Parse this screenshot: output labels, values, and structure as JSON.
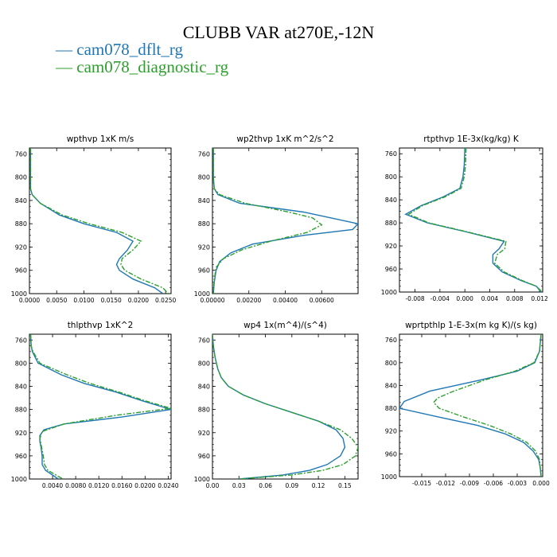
{
  "figure": {
    "title": "CLUBB VAR at270E,-12N",
    "legend": [
      "— cam078_dflt_rg",
      "— cam078_diagnostic_rg"
    ]
  },
  "colors": {
    "series_0": "#1f77b4",
    "series_1": "#2ca02c",
    "axis": "#000000"
  },
  "chart_data": [
    {
      "type": "line",
      "title": "wpthvp   1xK m/s",
      "xlim": [
        0,
        0.026
      ],
      "ylim": [
        1000,
        750
      ],
      "xticks": [
        0,
        0.005,
        0.01,
        0.015,
        0.02,
        0.025
      ],
      "xtick_labels": [
        "0.0000",
        "0.0050",
        "0.0100",
        "0.0150",
        "0.0200",
        "0.0250"
      ],
      "yticks": [
        760,
        800,
        840,
        880,
        920,
        960,
        1000
      ],
      "ytick_labels": [
        "760",
        "800",
        "840",
        "880",
        "920",
        "960",
        "1000"
      ],
      "series": [
        {
          "y": [
            750,
            760,
            780,
            800,
            820,
            830,
            845,
            865,
            880,
            895,
            910,
            925,
            940,
            950,
            960,
            975,
            990,
            1000
          ],
          "x": [
            0.0002,
            0.0002,
            0.0002,
            0.0002,
            0.0002,
            0.0005,
            0.002,
            0.0055,
            0.01,
            0.016,
            0.019,
            0.018,
            0.0165,
            0.016,
            0.0165,
            0.019,
            0.023,
            0.0245
          ]
        },
        {
          "y": [
            750,
            760,
            780,
            800,
            820,
            830,
            845,
            865,
            880,
            895,
            910,
            925,
            940,
            950,
            960,
            975,
            990,
            1000
          ],
          "x": [
            0.0002,
            0.0002,
            0.0002,
            0.0002,
            0.0002,
            0.0005,
            0.002,
            0.006,
            0.011,
            0.017,
            0.0205,
            0.019,
            0.017,
            0.0168,
            0.0175,
            0.0205,
            0.0245,
            0.0255
          ]
        }
      ]
    },
    {
      "type": "line",
      "title": "wp2thvp   1xK m^2/s^2",
      "xlim": [
        0,
        0.008
      ],
      "ylim": [
        1000,
        750
      ],
      "xticks": [
        0,
        0.002,
        0.004,
        0.006
      ],
      "xtick_labels": [
        "0.00000",
        "0.00200",
        "0.00400",
        "0.00600"
      ],
      "yticks": [
        760,
        800,
        840,
        880,
        920,
        960,
        1000
      ],
      "ytick_labels": [
        "760",
        "800",
        "840",
        "880",
        "920",
        "960",
        "1000"
      ],
      "series": [
        {
          "y": [
            750,
            780,
            800,
            820,
            830,
            845,
            860,
            880,
            890,
            900,
            915,
            930,
            945,
            960,
            980,
            1000
          ],
          "x": [
            5e-05,
            5e-05,
            5e-05,
            0.0001,
            0.0003,
            0.0015,
            0.005,
            0.008,
            0.0077,
            0.005,
            0.0022,
            0.001,
            0.0004,
            0.0002,
            0.0001,
            5e-05
          ]
        },
        {
          "y": [
            750,
            780,
            800,
            820,
            830,
            845,
            860,
            870,
            882,
            895,
            910,
            925,
            940,
            955,
            975,
            1000
          ],
          "x": [
            5e-05,
            5e-05,
            5e-05,
            0.0001,
            0.0004,
            0.0018,
            0.0042,
            0.0055,
            0.006,
            0.0052,
            0.0032,
            0.0016,
            0.0006,
            0.0002,
            0.0001,
            5e-05
          ]
        }
      ]
    },
    {
      "type": "line",
      "title": "rtpthvp   1E-3x(kg/kg) K",
      "xlim": [
        -0.0105,
        0.0125
      ],
      "ylim": [
        1000,
        750
      ],
      "xticks": [
        -0.008,
        -0.004,
        0,
        0.004,
        0.008,
        0.012
      ],
      "xtick_labels": [
        "-0.008",
        "-0.004",
        "0.000",
        "0.004",
        "0.008",
        "0.012"
      ],
      "yticks": [
        760,
        800,
        840,
        880,
        920,
        960,
        1000
      ],
      "ytick_labels": [
        "760",
        "800",
        "840",
        "880",
        "920",
        "960",
        "1000"
      ],
      "series": [
        {
          "y": [
            750,
            780,
            800,
            820,
            835,
            850,
            865,
            880,
            895,
            912,
            925,
            935,
            950,
            965,
            980,
            990,
            1000
          ],
          "x": [
            0.0,
            -0.0001,
            -0.0003,
            -0.0008,
            -0.0035,
            -0.007,
            -0.0095,
            -0.006,
            0.0,
            0.0063,
            0.0055,
            0.0045,
            0.0045,
            0.006,
            0.009,
            0.0115,
            0.0122
          ]
        },
        {
          "y": [
            750,
            780,
            800,
            820,
            835,
            850,
            865,
            880,
            895,
            912,
            925,
            935,
            950,
            965,
            980,
            990,
            1000
          ],
          "x": [
            0.0002,
            0.0001,
            -0.0001,
            -0.0006,
            -0.0032,
            -0.0068,
            -0.009,
            -0.0058,
            0.0002,
            0.0066,
            0.0064,
            0.0052,
            0.0048,
            0.0063,
            0.0092,
            0.0115,
            0.0124
          ]
        }
      ]
    },
    {
      "type": "line",
      "title": "thlpthvp   1xK^2",
      "xlim": [
        0,
        0.0245
      ],
      "ylim": [
        1000,
        750
      ],
      "xticks": [
        0.004,
        0.008,
        0.012,
        0.016,
        0.02,
        0.024
      ],
      "xtick_labels": [
        "0.0040",
        "0.0080",
        "0.0120",
        "0.0160",
        "0.0200",
        "0.0240"
      ],
      "yticks": [
        760,
        800,
        840,
        880,
        920,
        960,
        1000
      ],
      "ytick_labels": [
        "760",
        "800",
        "840",
        "880",
        "920",
        "960",
        "1000"
      ],
      "series": [
        {
          "y": [
            750,
            770,
            780,
            800,
            820,
            835,
            850,
            865,
            880,
            893,
            905,
            915,
            925,
            935,
            945,
            960,
            975,
            985,
            1000
          ],
          "x": [
            0.0002,
            0.0003,
            0.0005,
            0.0015,
            0.0055,
            0.0095,
            0.015,
            0.0195,
            0.0245,
            0.016,
            0.006,
            0.0025,
            0.0018,
            0.0018,
            0.002,
            0.0022,
            0.0022,
            0.0028,
            0.005
          ]
        },
        {
          "y": [
            750,
            770,
            780,
            800,
            820,
            835,
            850,
            865,
            878,
            890,
            905,
            918,
            930,
            945,
            960,
            975,
            985,
            1000
          ],
          "x": [
            0.0002,
            0.0003,
            0.0006,
            0.0018,
            0.0065,
            0.0105,
            0.0155,
            0.02,
            0.0245,
            0.015,
            0.006,
            0.0022,
            0.0018,
            0.0021,
            0.0024,
            0.0026,
            0.0032,
            0.0058
          ]
        }
      ]
    },
    {
      "type": "line",
      "title": "wp4   1x(m^4)/(s^4)",
      "xlim": [
        0,
        0.165
      ],
      "ylim": [
        1000,
        750
      ],
      "xticks": [
        0,
        0.03,
        0.06,
        0.09,
        0.12,
        0.15
      ],
      "xtick_labels": [
        "0.00",
        "0.03",
        "0.06",
        "0.09",
        "0.12",
        "0.15"
      ],
      "yticks": [
        760,
        800,
        840,
        880,
        920,
        960,
        1000
      ],
      "ytick_labels": [
        "760",
        "800",
        "840",
        "880",
        "920",
        "960",
        "1000"
      ],
      "series": [
        {
          "y": [
            750,
            770,
            790,
            810,
            825,
            840,
            855,
            870,
            885,
            900,
            915,
            930,
            945,
            960,
            975,
            985,
            993,
            1000
          ],
          "x": [
            0.0,
            0.001,
            0.003,
            0.006,
            0.01,
            0.018,
            0.035,
            0.06,
            0.09,
            0.12,
            0.14,
            0.148,
            0.15,
            0.145,
            0.13,
            0.11,
            0.08,
            0.03
          ]
        },
        {
          "y": [
            750,
            770,
            790,
            810,
            825,
            840,
            855,
            870,
            885,
            900,
            915,
            930,
            945,
            960,
            975,
            985,
            993,
            1000
          ],
          "x": [
            0.0,
            0.001,
            0.003,
            0.006,
            0.01,
            0.018,
            0.035,
            0.06,
            0.09,
            0.12,
            0.145,
            0.158,
            0.165,
            0.162,
            0.148,
            0.125,
            0.09,
            0.03
          ]
        }
      ]
    },
    {
      "type": "line",
      "title": "wprtpthlp   1-E-3x(m kg K)/(s kg)",
      "xlim": [
        -0.0178,
        0.0002
      ],
      "ylim": [
        1000,
        750
      ],
      "xticks": [
        -0.015,
        -0.012,
        -0.009,
        -0.006,
        -0.003,
        0
      ],
      "xtick_labels": [
        "-0.015",
        "-0.012",
        "-0.009",
        "-0.006",
        "-0.003",
        "0.000"
      ],
      "yticks": [
        760,
        800,
        840,
        880,
        920,
        960,
        1000
      ],
      "ytick_labels": [
        "760",
        "800",
        "840",
        "880",
        "920",
        "960",
        "1000"
      ],
      "series": [
        {
          "y": [
            750,
            780,
            800,
            815,
            830,
            850,
            868,
            880,
            895,
            910,
            925,
            940,
            955,
            970,
            985,
            1000
          ],
          "x": [
            0.0,
            -0.0002,
            -0.0008,
            -0.003,
            -0.0075,
            -0.014,
            -0.0172,
            -0.0178,
            -0.013,
            -0.008,
            -0.0045,
            -0.0022,
            -0.001,
            -0.0003,
            -0.0001,
            0.0
          ]
        },
        {
          "y": [
            750,
            780,
            800,
            815,
            830,
            850,
            862,
            870,
            880,
            895,
            910,
            925,
            940,
            955,
            970,
            985,
            1000
          ],
          "x": [
            0.0,
            -0.0002,
            -0.0009,
            -0.0033,
            -0.007,
            -0.011,
            -0.013,
            -0.0135,
            -0.0128,
            -0.0098,
            -0.0065,
            -0.0038,
            -0.0018,
            -0.0007,
            -0.0002,
            -0.0001,
            0.0
          ]
        }
      ]
    }
  ]
}
